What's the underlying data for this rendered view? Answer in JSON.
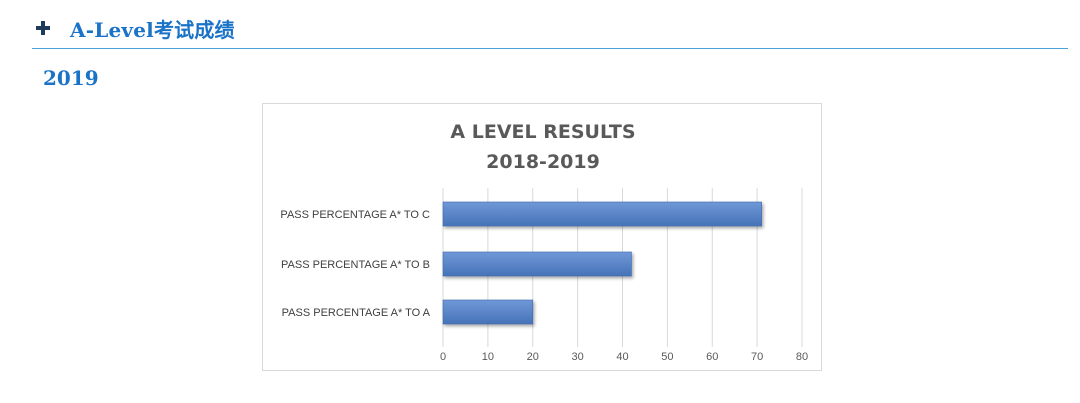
{
  "header": {
    "title": "A-Level考试成绩",
    "icon": "plus-icon"
  },
  "year": "2019",
  "colors": {
    "accent": "#1a73c7",
    "divider": "#4aa3d8",
    "bar": "#5b86c9",
    "bar_dark": "#3f6aad"
  },
  "chart_data": {
    "type": "bar",
    "orientation": "horizontal",
    "title": "A LEVEL RESULTS",
    "subtitle": "2018-2019",
    "categories": [
      "PASS PERCENTAGE A* TO C",
      "PASS PERCENTAGE A* TO B",
      "PASS PERCENTAGE A* TO A"
    ],
    "values": [
      71,
      42,
      20
    ],
    "xlim": [
      0,
      80
    ],
    "xticks": [
      0,
      10,
      20,
      30,
      40,
      50,
      60,
      70,
      80
    ],
    "grid": true,
    "legend": "none"
  }
}
